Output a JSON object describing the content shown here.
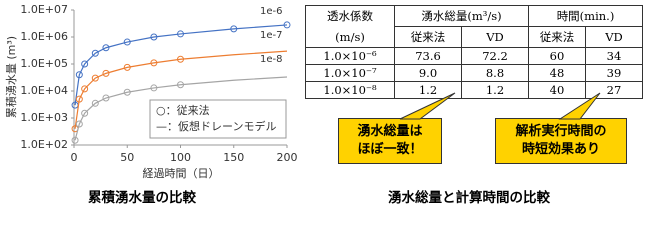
{
  "chart_data": {
    "type": "line",
    "log_y": true,
    "y_label": "累積湧水量 (m³)",
    "x_label": "経過時間（日）",
    "x": [
      1,
      5,
      10,
      20,
      30,
      50,
      75,
      100,
      150,
      200
    ],
    "xlim": [
      0,
      200
    ],
    "xticks": [
      0,
      50,
      100,
      150,
      200
    ],
    "ylim": [
      100,
      10000000
    ],
    "yticks": [
      {
        "value": 100,
        "label": "1.0E+02"
      },
      {
        "value": 1000,
        "label": "1.0E+03"
      },
      {
        "value": 10000,
        "label": "1.0E+04"
      },
      {
        "value": 100000,
        "label": "1.0E+05"
      },
      {
        "value": 1000000,
        "label": "1.0E+06"
      },
      {
        "value": 10000000,
        "label": "1.0E+07"
      }
    ],
    "legend": [
      "○：従来法",
      "—：仮想ドレーンモデル"
    ],
    "series": [
      {
        "name": "1e-6",
        "color": "#4472c4",
        "values": [
          3000,
          40000,
          100000,
          250000,
          400000,
          650000,
          1000000,
          1300000,
          2000000,
          2800000
        ],
        "markers": [
          3000,
          40000,
          100000,
          250000,
          400000,
          650000,
          1000000,
          1300000,
          2000000,
          2800000
        ]
      },
      {
        "name": "1e-7",
        "color": "#ed7d31",
        "values": [
          400,
          5000,
          12000,
          30000,
          45000,
          75000,
          110000,
          150000,
          220000,
          300000
        ],
        "markers": [
          400,
          5000,
          12000,
          30000,
          45000,
          75000,
          110000,
          150000,
          null,
          null
        ]
      },
      {
        "name": "1e-8",
        "color": "#a5a5a5",
        "values": [
          150,
          600,
          1500,
          3500,
          5500,
          9000,
          13000,
          17000,
          25000,
          33000
        ],
        "markers": [
          150,
          600,
          1500,
          3500,
          5500,
          9000,
          13000,
          17000,
          null,
          null
        ]
      }
    ]
  },
  "table": {
    "header": [
      [
        "透水係数",
        "湧水総量(m³/s)",
        "時間(min.)"
      ],
      [
        "(m/s)",
        "従来法",
        "VD",
        "従来法",
        "VD"
      ]
    ],
    "rows": [
      [
        "1.0×10⁻⁶",
        "73.6",
        "72.2",
        "60",
        "34"
      ],
      [
        "1.0×10⁻⁷",
        "9.0",
        "8.8",
        "48",
        "39"
      ],
      [
        "1.0×10⁻⁸",
        "1.2",
        "1.2",
        "40",
        "27"
      ]
    ]
  },
  "callouts": [
    [
      "湧水総量は",
      "ほぼ一致！"
    ],
    [
      "解析実行時間の",
      "時短効果あり"
    ]
  ],
  "captions": [
    "累積湧水量の比較",
    "湧水総量と計算時間の比較"
  ]
}
